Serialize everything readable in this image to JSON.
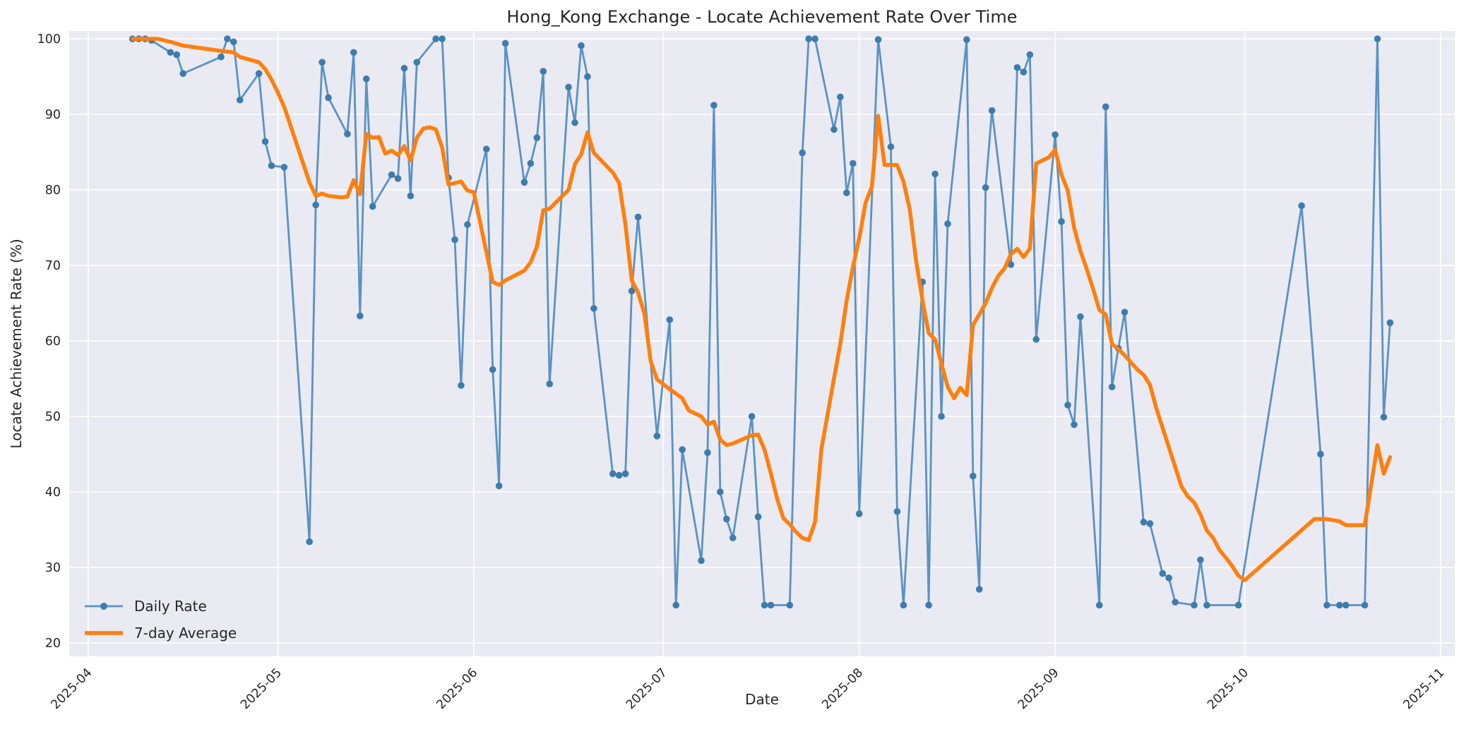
{
  "chart_data": {
    "type": "line",
    "title": "Hong_Kong Exchange - Locate Achievement Rate Over Time",
    "xlabel": "Date",
    "ylabel": "Locate Achievement Rate (%)",
    "ylim": [
      20,
      100
    ],
    "yticks": [
      20,
      30,
      40,
      50,
      60,
      70,
      80,
      90,
      100
    ],
    "xtick_labels": [
      "2025-04",
      "2025-05",
      "2025-06",
      "2025-07",
      "2025-08",
      "2025-09",
      "2025-10",
      "2025-11"
    ],
    "grid": true,
    "legend_position": "lower left",
    "plot_bg_color": "#eaeaf2",
    "grid_color": "#ffffff",
    "text_color": "#262626",
    "series": [
      {
        "name": "Daily Rate",
        "color": "#5b92c3",
        "marker_color": "#3d7cab",
        "marker": "o",
        "points": [
          [
            "2025-04-08",
            100
          ],
          [
            "2025-04-09",
            100
          ],
          [
            "2025-04-10",
            100
          ],
          [
            "2025-04-11",
            99.8
          ],
          [
            "2025-04-14",
            98.2
          ],
          [
            "2025-04-15",
            97.9
          ],
          [
            "2025-04-16",
            95.4
          ],
          [
            "2025-04-22",
            97.6
          ],
          [
            "2025-04-23",
            100
          ],
          [
            "2025-04-24",
            99.6
          ],
          [
            "2025-04-25",
            91.9
          ],
          [
            "2025-04-28",
            95.4
          ],
          [
            "2025-04-29",
            86.4
          ],
          [
            "2025-04-30",
            83.2
          ],
          [
            "2025-05-02",
            83.0
          ],
          [
            "2025-05-06",
            33.4
          ],
          [
            "2025-05-07",
            78.0
          ],
          [
            "2025-05-08",
            96.9
          ],
          [
            "2025-05-09",
            92.2
          ],
          [
            "2025-05-12",
            87.4
          ],
          [
            "2025-05-13",
            98.2
          ],
          [
            "2025-05-14",
            63.3
          ],
          [
            "2025-05-15",
            94.7
          ],
          [
            "2025-05-16",
            77.8
          ],
          [
            "2025-05-19",
            82.0
          ],
          [
            "2025-05-20",
            81.5
          ],
          [
            "2025-05-21",
            96.1
          ],
          [
            "2025-05-22",
            79.2
          ],
          [
            "2025-05-23",
            96.9
          ],
          [
            "2025-05-26",
            100
          ],
          [
            "2025-05-27",
            100
          ],
          [
            "2025-05-28",
            81.6
          ],
          [
            "2025-05-29",
            73.4
          ],
          [
            "2025-05-30",
            54.1
          ],
          [
            "2025-05-31",
            75.4
          ],
          [
            "2025-06-03",
            85.4
          ],
          [
            "2025-06-04",
            56.2
          ],
          [
            "2025-06-05",
            40.8
          ],
          [
            "2025-06-06",
            99.4
          ],
          [
            "2025-06-09",
            81.0
          ],
          [
            "2025-06-10",
            83.5
          ],
          [
            "2025-06-11",
            86.9
          ],
          [
            "2025-06-12",
            95.7
          ],
          [
            "2025-06-13",
            54.3
          ],
          [
            "2025-06-16",
            93.6
          ],
          [
            "2025-06-17",
            88.9
          ],
          [
            "2025-06-18",
            99.1
          ],
          [
            "2025-06-19",
            95.0
          ],
          [
            "2025-06-20",
            64.3
          ],
          [
            "2025-06-23",
            42.4
          ],
          [
            "2025-06-24",
            42.2
          ],
          [
            "2025-06-25",
            42.4
          ],
          [
            "2025-06-26",
            66.6
          ],
          [
            "2025-06-27",
            76.4
          ],
          [
            "2025-06-30",
            47.4
          ],
          [
            "2025-07-02",
            62.8
          ],
          [
            "2025-07-03",
            25.0
          ],
          [
            "2025-07-04",
            45.6
          ],
          [
            "2025-07-07",
            30.9
          ],
          [
            "2025-07-08",
            45.2
          ],
          [
            "2025-07-09",
            91.2
          ],
          [
            "2025-07-10",
            40.0
          ],
          [
            "2025-07-11",
            36.4
          ],
          [
            "2025-07-12",
            33.9
          ],
          [
            "2025-07-15",
            50.0
          ],
          [
            "2025-07-16",
            36.7
          ],
          [
            "2025-07-17",
            25.0
          ],
          [
            "2025-07-18",
            25.0
          ],
          [
            "2025-07-21",
            25.0
          ],
          [
            "2025-07-23",
            84.9
          ],
          [
            "2025-07-24",
            100
          ],
          [
            "2025-07-25",
            100
          ],
          [
            "2025-07-28",
            88.0
          ],
          [
            "2025-07-29",
            92.3
          ],
          [
            "2025-07-30",
            79.6
          ],
          [
            "2025-07-31",
            83.5
          ],
          [
            "2025-08-01",
            37.1
          ],
          [
            "2025-08-04",
            99.9
          ],
          [
            "2025-08-06",
            85.7
          ],
          [
            "2025-08-07",
            37.4
          ],
          [
            "2025-08-08",
            25.0
          ],
          [
            "2025-08-11",
            67.8
          ],
          [
            "2025-08-12",
            25.0
          ],
          [
            "2025-08-13",
            82.1
          ],
          [
            "2025-08-14",
            50.0
          ],
          [
            "2025-08-15",
            75.5
          ],
          [
            "2025-08-18",
            99.9
          ],
          [
            "2025-08-19",
            42.1
          ],
          [
            "2025-08-20",
            27.1
          ],
          [
            "2025-08-21",
            80.3
          ],
          [
            "2025-08-22",
            90.5
          ],
          [
            "2025-08-25",
            70.1
          ],
          [
            "2025-08-26",
            96.2
          ],
          [
            "2025-08-27",
            95.6
          ],
          [
            "2025-08-28",
            97.9
          ],
          [
            "2025-08-29",
            60.2
          ],
          [
            "2025-09-01",
            87.3
          ],
          [
            "2025-09-02",
            75.8
          ],
          [
            "2025-09-03",
            51.5
          ],
          [
            "2025-09-04",
            48.9
          ],
          [
            "2025-09-05",
            63.2
          ],
          [
            "2025-09-08",
            25.0
          ],
          [
            "2025-09-09",
            91.0
          ],
          [
            "2025-09-10",
            53.9
          ],
          [
            "2025-09-11",
            59.0
          ],
          [
            "2025-09-12",
            63.8
          ],
          [
            "2025-09-15",
            36.0
          ],
          [
            "2025-09-16",
            35.8
          ],
          [
            "2025-09-18",
            29.2
          ],
          [
            "2025-09-19",
            28.6
          ],
          [
            "2025-09-20",
            25.4
          ],
          [
            "2025-09-23",
            25.0
          ],
          [
            "2025-09-24",
            31.0
          ],
          [
            "2025-09-25",
            25.0
          ],
          [
            "2025-09-30",
            25.0
          ],
          [
            "2025-10-10",
            77.9
          ],
          [
            "2025-10-13",
            45.0
          ],
          [
            "2025-10-14",
            25.0
          ],
          [
            "2025-10-16",
            25.0
          ],
          [
            "2025-10-17",
            25.0
          ],
          [
            "2025-10-20",
            25.0
          ],
          [
            "2025-10-22",
            100
          ],
          [
            "2025-10-23",
            49.9
          ],
          [
            "2025-10-24",
            62.4
          ]
        ]
      },
      {
        "name": "7-day Average",
        "color": "#ff7f0e",
        "marker": "none",
        "points": [
          [
            "2025-04-08",
            100
          ],
          [
            "2025-04-12",
            100
          ],
          [
            "2025-04-14",
            99.6
          ],
          [
            "2025-04-16",
            99.1
          ],
          [
            "2025-04-22",
            98.4
          ],
          [
            "2025-04-24",
            98.2
          ],
          [
            "2025-04-25",
            97.6
          ],
          [
            "2025-04-28",
            96.9
          ],
          [
            "2025-04-29",
            96.0
          ],
          [
            "2025-04-30",
            94.6
          ],
          [
            "2025-05-01",
            92.9
          ],
          [
            "2025-05-02",
            91.0
          ],
          [
            "2025-05-03",
            88.5
          ],
          [
            "2025-05-04",
            86.0
          ],
          [
            "2025-05-05",
            83.5
          ],
          [
            "2025-05-06",
            81.0
          ],
          [
            "2025-05-07",
            79.2
          ],
          [
            "2025-05-08",
            79.5
          ],
          [
            "2025-05-09",
            79.2
          ],
          [
            "2025-05-11",
            79.0
          ],
          [
            "2025-05-12",
            79.1
          ],
          [
            "2025-05-13",
            81.3
          ],
          [
            "2025-05-14",
            79.4
          ],
          [
            "2025-05-15",
            87.4
          ],
          [
            "2025-05-16",
            86.9
          ],
          [
            "2025-05-17",
            87.0
          ],
          [
            "2025-05-18",
            84.8
          ],
          [
            "2025-05-19",
            85.2
          ],
          [
            "2025-05-20",
            84.6
          ],
          [
            "2025-05-21",
            85.8
          ],
          [
            "2025-05-22",
            83.9
          ],
          [
            "2025-05-23",
            86.9
          ],
          [
            "2025-05-24",
            88.1
          ],
          [
            "2025-05-25",
            88.3
          ],
          [
            "2025-05-26",
            88.0
          ],
          [
            "2025-05-27",
            85.6
          ],
          [
            "2025-05-28",
            80.7
          ],
          [
            "2025-05-29",
            80.9
          ],
          [
            "2025-05-30",
            81.1
          ],
          [
            "2025-05-31",
            79.9
          ],
          [
            "2025-06-01",
            79.7
          ],
          [
            "2025-06-04",
            67.8
          ],
          [
            "2025-06-05",
            67.4
          ],
          [
            "2025-06-06",
            68.0
          ],
          [
            "2025-06-09",
            69.3
          ],
          [
            "2025-06-10",
            70.4
          ],
          [
            "2025-06-11",
            72.5
          ],
          [
            "2025-06-12",
            77.3
          ],
          [
            "2025-06-13",
            77.5
          ],
          [
            "2025-06-16",
            80.0
          ],
          [
            "2025-06-17",
            83.4
          ],
          [
            "2025-06-18",
            84.7
          ],
          [
            "2025-06-19",
            87.6
          ],
          [
            "2025-06-20",
            84.9
          ],
          [
            "2025-06-23",
            82.3
          ],
          [
            "2025-06-24",
            80.9
          ],
          [
            "2025-06-25",
            75.4
          ],
          [
            "2025-06-26",
            68.0
          ],
          [
            "2025-06-27",
            66.4
          ],
          [
            "2025-06-28",
            63.6
          ],
          [
            "2025-06-29",
            57.3
          ],
          [
            "2025-06-30",
            54.9
          ],
          [
            "2025-07-02",
            53.6
          ],
          [
            "2025-07-04",
            52.4
          ],
          [
            "2025-07-05",
            50.8
          ],
          [
            "2025-07-07",
            50.0
          ],
          [
            "2025-07-08",
            48.9
          ],
          [
            "2025-07-09",
            49.3
          ],
          [
            "2025-07-10",
            46.9
          ],
          [
            "2025-07-11",
            46.2
          ],
          [
            "2025-07-12",
            46.4
          ],
          [
            "2025-07-15",
            47.5
          ],
          [
            "2025-07-16",
            47.6
          ],
          [
            "2025-07-17",
            45.6
          ],
          [
            "2025-07-18",
            42.5
          ],
          [
            "2025-07-19",
            39.1
          ],
          [
            "2025-07-20",
            36.5
          ],
          [
            "2025-07-21",
            35.7
          ],
          [
            "2025-07-22",
            34.7
          ],
          [
            "2025-07-23",
            33.9
          ],
          [
            "2025-07-24",
            33.6
          ],
          [
            "2025-07-25",
            36.0
          ],
          [
            "2025-07-26",
            45.6
          ],
          [
            "2025-07-28",
            55.0
          ],
          [
            "2025-07-29",
            59.6
          ],
          [
            "2025-07-30",
            65.3
          ],
          [
            "2025-07-31",
            69.8
          ],
          [
            "2025-08-01",
            73.6
          ],
          [
            "2025-08-02",
            78.3
          ],
          [
            "2025-08-03",
            80.4
          ],
          [
            "2025-08-04",
            89.8
          ],
          [
            "2025-08-05",
            83.3
          ],
          [
            "2025-08-07",
            83.3
          ],
          [
            "2025-08-08",
            81.1
          ],
          [
            "2025-08-09",
            77.4
          ],
          [
            "2025-08-10",
            70.6
          ],
          [
            "2025-08-11",
            65.4
          ],
          [
            "2025-08-12",
            61.0
          ],
          [
            "2025-08-13",
            60.2
          ],
          [
            "2025-08-14",
            57.0
          ],
          [
            "2025-08-15",
            53.9
          ],
          [
            "2025-08-16",
            52.4
          ],
          [
            "2025-08-17",
            53.8
          ],
          [
            "2025-08-18",
            52.8
          ],
          [
            "2025-08-19",
            62.1
          ],
          [
            "2025-08-20",
            63.5
          ],
          [
            "2025-08-21",
            65.0
          ],
          [
            "2025-08-22",
            67.0
          ],
          [
            "2025-08-23",
            68.6
          ],
          [
            "2025-08-24",
            69.6
          ],
          [
            "2025-08-25",
            71.5
          ],
          [
            "2025-08-26",
            72.2
          ],
          [
            "2025-08-27",
            71.1
          ],
          [
            "2025-08-28",
            72.2
          ],
          [
            "2025-08-29",
            83.5
          ],
          [
            "2025-08-31",
            84.3
          ],
          [
            "2025-09-01",
            85.3
          ],
          [
            "2025-09-02",
            82.0
          ],
          [
            "2025-09-03",
            79.9
          ],
          [
            "2025-09-04",
            75.0
          ],
          [
            "2025-09-05",
            71.9
          ],
          [
            "2025-09-06",
            69.5
          ],
          [
            "2025-09-07",
            66.9
          ],
          [
            "2025-09-08",
            64.1
          ],
          [
            "2025-09-09",
            63.5
          ],
          [
            "2025-09-10",
            59.6
          ],
          [
            "2025-09-11",
            58.9
          ],
          [
            "2025-09-12",
            58.1
          ],
          [
            "2025-09-14",
            56.2
          ],
          [
            "2025-09-15",
            55.5
          ],
          [
            "2025-09-16",
            54.2
          ],
          [
            "2025-09-17",
            51.1
          ],
          [
            "2025-09-18",
            48.5
          ],
          [
            "2025-09-19",
            45.9
          ],
          [
            "2025-09-20",
            43.3
          ],
          [
            "2025-09-21",
            40.7
          ],
          [
            "2025-09-22",
            39.4
          ],
          [
            "2025-09-23",
            38.6
          ],
          [
            "2025-09-24",
            37.0
          ],
          [
            "2025-09-25",
            34.9
          ],
          [
            "2025-09-26",
            33.9
          ],
          [
            "2025-09-27",
            32.3
          ],
          [
            "2025-09-28",
            31.3
          ],
          [
            "2025-09-29",
            30.2
          ],
          [
            "2025-09-30",
            28.9
          ],
          [
            "2025-10-01",
            28.3
          ],
          [
            "2025-10-12",
            36.4
          ],
          [
            "2025-10-14",
            36.4
          ],
          [
            "2025-10-16",
            36.1
          ],
          [
            "2025-10-17",
            35.6
          ],
          [
            "2025-10-20",
            35.6
          ],
          [
            "2025-10-22",
            46.2
          ],
          [
            "2025-10-23",
            42.4
          ],
          [
            "2025-10-24",
            44.6
          ]
        ]
      }
    ]
  },
  "legend": {
    "items": [
      {
        "label": "Daily Rate"
      },
      {
        "label": "7-day Average"
      }
    ]
  }
}
